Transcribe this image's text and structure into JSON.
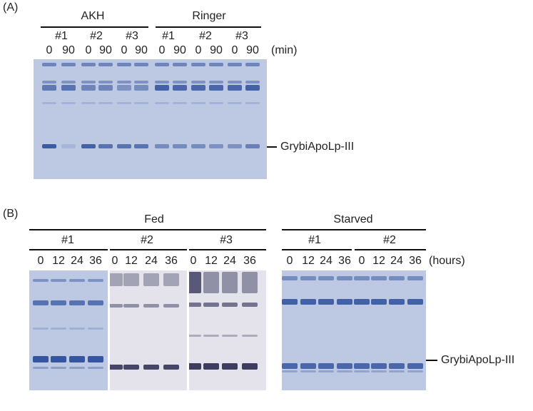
{
  "panelA": {
    "label": "(A)",
    "groups": [
      "AKH",
      "Ringer"
    ],
    "replicates": [
      "#1",
      "#2",
      "#3",
      "#1",
      "#2",
      "#3"
    ],
    "times": [
      "0",
      "90",
      "0",
      "90",
      "0",
      "90",
      "0",
      "90",
      "0",
      "90",
      "0",
      "90"
    ],
    "unit": "(min)",
    "band_label": "GrybiApoLp-III"
  },
  "panelB": {
    "label": "(B)",
    "groups": [
      "Fed",
      "Starved"
    ],
    "replicates": [
      "#1",
      "#2",
      "#3",
      "#1",
      "#2"
    ],
    "times": [
      "0",
      "12",
      "24",
      "36",
      "0",
      "12",
      "24",
      "36",
      "0",
      "12",
      "24",
      "36",
      "0",
      "12",
      "24",
      "36",
      "0",
      "12",
      "24",
      "36"
    ],
    "unit": "(hours)",
    "band_label": "GrybiApoLp-III"
  },
  "colors": {
    "coomassie_bg": "#bdc8e3",
    "coomassie_band": "#2e4f9c",
    "silver_bg": "#e4e3ec",
    "silver_band": "#2a2a52"
  }
}
